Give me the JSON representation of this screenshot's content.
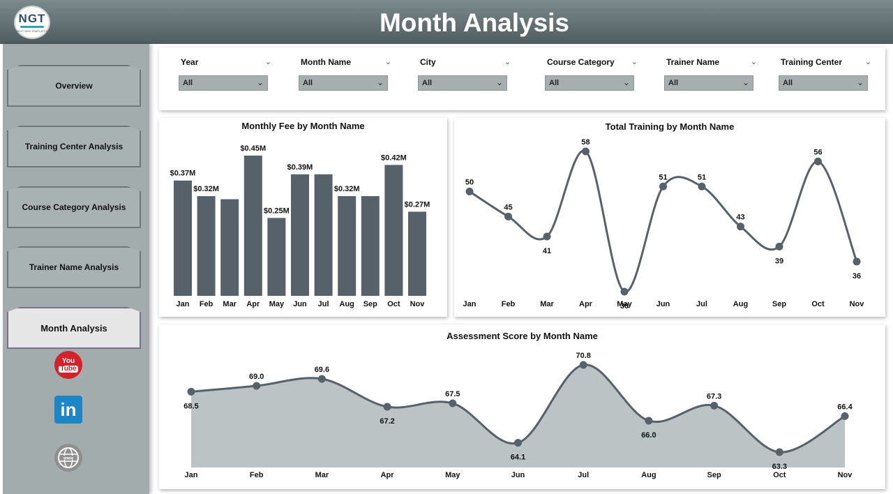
{
  "header": {
    "title": "Month Analysis",
    "logo_text": "NGT",
    "logo_tagline": "NEXT GEN TEMPLATES"
  },
  "sidebar": {
    "items": [
      {
        "label": "Overview",
        "active": false
      },
      {
        "label": "Training Center Analysis",
        "active": false
      },
      {
        "label": "Course Category Analysis",
        "active": false
      },
      {
        "label": "Trainer Name Analysis",
        "active": false
      },
      {
        "label": "Month Analysis",
        "active": true
      }
    ],
    "social": {
      "youtube_top": "You",
      "youtube_bottom": "Tube",
      "linkedin": "in",
      "web": "www"
    }
  },
  "filters": [
    {
      "label": "Year",
      "value": "All"
    },
    {
      "label": "Month Name",
      "value": "All"
    },
    {
      "label": "City",
      "value": "All"
    },
    {
      "label": "Course Category",
      "value": "All"
    },
    {
      "label": "Trainer Name",
      "value": "All"
    },
    {
      "label": "Training Center",
      "value": "All"
    }
  ],
  "colors": {
    "header": "#5f6c6f",
    "sidebar": "#a3acac",
    "mark": "#56616a",
    "area_fill": "#bcc3c4"
  },
  "chart_data": [
    {
      "type": "bar",
      "title": "Monthly Fee by Month Name",
      "categories": [
        "Jan",
        "Feb",
        "Mar",
        "Apr",
        "May",
        "Jun",
        "Jul",
        "Aug",
        "Sep",
        "Oct",
        "Nov"
      ],
      "values": [
        0.37,
        0.32,
        0.31,
        0.45,
        0.25,
        0.39,
        0.39,
        0.32,
        0.32,
        0.42,
        0.27
      ],
      "labels": [
        "$0.37M",
        "$0.32M",
        "",
        "$0.45M",
        "$0.25M",
        "$0.39M",
        "",
        "$0.32M",
        "",
        "$0.42M",
        "$0.27M"
      ],
      "ylim": [
        0,
        0.45
      ]
    },
    {
      "type": "line",
      "title": "Total Training by Month Name",
      "categories": [
        "Jan",
        "Feb",
        "Mar",
        "Apr",
        "May",
        "Jun",
        "Jul",
        "Aug",
        "Sep",
        "Oct",
        "Nov"
      ],
      "values": [
        50,
        45,
        41,
        58,
        30,
        51,
        51,
        43,
        39,
        56,
        36
      ],
      "ylim": [
        30,
        58
      ]
    },
    {
      "type": "area",
      "title": "Assessment Score by Month Name",
      "categories": [
        "Jan",
        "Feb",
        "Mar",
        "Apr",
        "May",
        "Jun",
        "Jul",
        "Aug",
        "Sep",
        "Oct",
        "Nov"
      ],
      "values": [
        68.5,
        69.0,
        69.6,
        67.2,
        67.5,
        64.1,
        70.8,
        66.0,
        67.3,
        63.3,
        66.4
      ],
      "ylim": [
        63.3,
        70.8
      ]
    }
  ]
}
